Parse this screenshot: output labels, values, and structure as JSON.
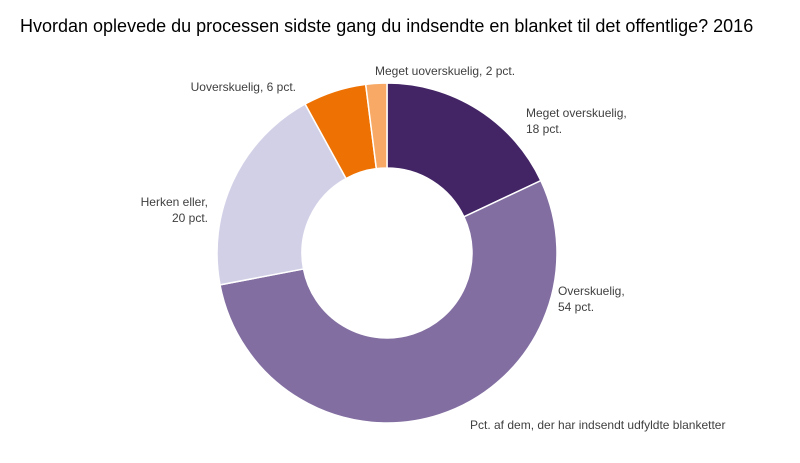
{
  "chart_data": {
    "type": "pie",
    "variant": "donut",
    "title": "Hvordan oplevede du processen sidste gang du indsendte en blanket til det offentlige? 2016",
    "note": "Pct. af dem, der har indsendt udfyldte blanketter",
    "slices": [
      {
        "name": "Meget overskuelig",
        "value": 18,
        "value_label": "18 pct.",
        "color": "#432566"
      },
      {
        "name": "Overskuelig",
        "value": 54,
        "value_label": "54 pct.",
        "color": "#826ea1"
      },
      {
        "name": "Herken eller",
        "value": 20,
        "value_label": "20 pct.",
        "color": "#d2d0e6"
      },
      {
        "name": "Uoverskuelig",
        "value": 6,
        "value_label": "6 pct.",
        "color": "#ee7203"
      },
      {
        "name": "Meget uoverskuelig",
        "value": 2,
        "value_label": "2 pct.",
        "color": "#f7a965"
      }
    ]
  }
}
